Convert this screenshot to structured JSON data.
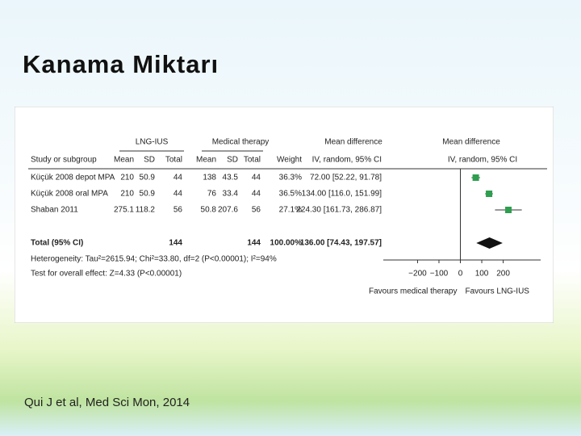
{
  "title": "Kanama Miktarı",
  "citation": "Qui J et al, Med Sci Mon, 2014",
  "forest": {
    "group_headers": [
      "LNG-IUS",
      "Medical therapy",
      "Mean difference",
      "Mean difference"
    ],
    "columns": [
      "Study or subgroup",
      "Mean",
      "SD",
      "Total",
      "Mean",
      "SD",
      "Total",
      "Weight",
      "IV, random, 95% CI",
      "IV, random, 95% CI"
    ],
    "studies": [
      {
        "name": "Küçük 2008 depot MPA",
        "mean1": 210,
        "sd1": 50.9,
        "n1": 44,
        "mean2": 138,
        "sd2": 43.5,
        "n2": 44,
        "weight": "36.3%",
        "ci_text": "72.00 [52.22, 91.78]",
        "md": 72,
        "ci": [
          52.22,
          91.78
        ]
      },
      {
        "name": "Küçük 2008 oral MPA",
        "mean1": 210,
        "sd1": 50.9,
        "n1": 44,
        "mean2": 76,
        "sd2": 33.4,
        "n2": 44,
        "weight": "36.5%",
        "ci_text": "134.00 [116.0, 151.99]",
        "md": 134,
        "ci": [
          116.0,
          151.99
        ]
      },
      {
        "name": "Shaban 2011",
        "mean1": 275.1,
        "sd1": 118.2,
        "n1": 56,
        "mean2": 50.8,
        "sd2": 207.6,
        "n2": 56,
        "weight": "27.1%",
        "ci_text": "224.30 [161.73, 286.87]",
        "md": 224.3,
        "ci": [
          161.73,
          286.87
        ]
      }
    ],
    "total": {
      "name": "Total (95% CI)",
      "n1": 144,
      "n2": 144,
      "weight": "100.00%",
      "ci_text": "136.00 [74.43, 197.57]",
      "md": 136,
      "ci": [
        74.43,
        197.57
      ]
    },
    "heterogeneity": "Heterogeneity: Tau²=2615.94; Chi²=33.80, df=2 (P<0.00001); I²=94%",
    "overall_effect": "Test for overall effect: Z=4.33 (P<0.00001)",
    "xlim": [
      -360,
      375
    ],
    "xticks": [
      {
        "value": -200,
        "label": "−200"
      },
      {
        "value": -100,
        "label": "−100"
      },
      0,
      100,
      200
    ],
    "favours_left": "Favours medical therapy",
    "favours_right": "Favours LNG-IUS",
    "color": "#2e9e4f"
  }
}
